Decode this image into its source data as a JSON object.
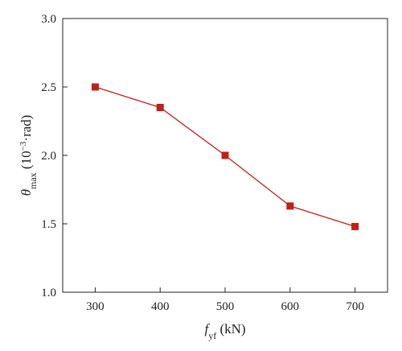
{
  "chart_data": {
    "type": "line",
    "x": [
      300,
      400,
      500,
      600,
      700
    ],
    "series": [
      {
        "values": [
          2.5,
          2.35,
          2.0,
          1.63,
          1.48
        ]
      }
    ],
    "xticks": [
      "300",
      "400",
      "500",
      "600",
      "700"
    ],
    "yticks": [
      "1.0",
      "1.5",
      "2.0",
      "2.5",
      "3.0"
    ],
    "xlim": [
      250,
      750
    ],
    "ylim": [
      1.0,
      3.0
    ],
    "xlabel": {
      "symbol": "f",
      "subscript": "yf",
      "unit": " (kN)"
    },
    "ylabel": {
      "symbol": "θ",
      "subscript": "max",
      "unit_pre": " (10",
      "unit_exp": "−3",
      "unit_post": "·rad)"
    },
    "grid": false,
    "marker": "square",
    "color": "#c0201a"
  }
}
